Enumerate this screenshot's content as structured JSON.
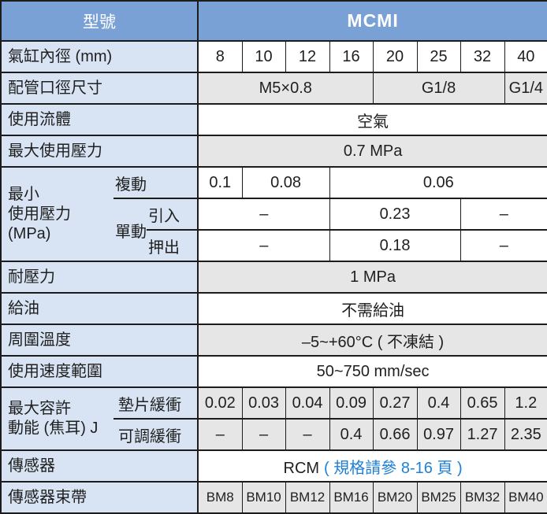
{
  "header": {
    "col_label": "型號",
    "col_value": "MCMI"
  },
  "bore": {
    "label": "氣缸內徑 (mm)",
    "values": [
      "8",
      "10",
      "12",
      "16",
      "20",
      "25",
      "32",
      "40"
    ]
  },
  "port": {
    "label": "配管口徑尺寸",
    "values": [
      "M5×0.8",
      "G1/8",
      "G1/4"
    ]
  },
  "fluid": {
    "label": "使用流體",
    "value": "空氣"
  },
  "max_pressure": {
    "label": "最大使用壓力",
    "value": "0.7 MPa"
  },
  "min_pressure": {
    "label": "最小\n使用壓力\n(MPa)",
    "double_acting": {
      "label": "複動",
      "values": [
        "0.1",
        "0.08",
        "0.06"
      ]
    },
    "single_acting": {
      "label": "單動",
      "pull": {
        "label": "引入",
        "values": [
          "–",
          "0.23",
          "–"
        ]
      },
      "push": {
        "label": "押出",
        "values": [
          "–",
          "0.18",
          "–"
        ]
      }
    }
  },
  "proof_pressure": {
    "label": "耐壓力",
    "value": "1 MPa"
  },
  "lubrication": {
    "label": "給油",
    "value": "不需給油"
  },
  "ambient_temp": {
    "label": "周圍溫度",
    "value": "–5~+60°C ( 不凍結 )"
  },
  "speed_range": {
    "label": "使用速度範圍",
    "value": "50~750 mm/sec"
  },
  "kinetic_energy": {
    "label": "最大容許\n動能 (焦耳) J",
    "pad_cushion": {
      "label": "墊片緩衝",
      "values": [
        "0.02",
        "0.03",
        "0.04",
        "0.09",
        "0.27",
        "0.4",
        "0.65",
        "1.2"
      ]
    },
    "adjustable_cushion": {
      "label": "可調緩衝",
      "values": [
        "–",
        "–",
        "–",
        "0.4",
        "0.66",
        "0.97",
        "1.27",
        "2.35"
      ]
    }
  },
  "sensor": {
    "label": "傳感器",
    "value_main": "RCM",
    "value_note": "( 規格請參 8-16 頁 )"
  },
  "sensor_band": {
    "label": "傳感器束帶",
    "values": [
      "BM8",
      "BM10",
      "BM12",
      "BM16",
      "BM20",
      "BM25",
      "BM32",
      "BM40"
    ]
  },
  "colors": {
    "header_bg": "#7AA1D6",
    "label_bg": "#D8E4F4",
    "gray_bg": "#E6E6E6",
    "border": "#1C1C1C",
    "link": "#1E7FD6",
    "text": "#1F1F1F"
  }
}
